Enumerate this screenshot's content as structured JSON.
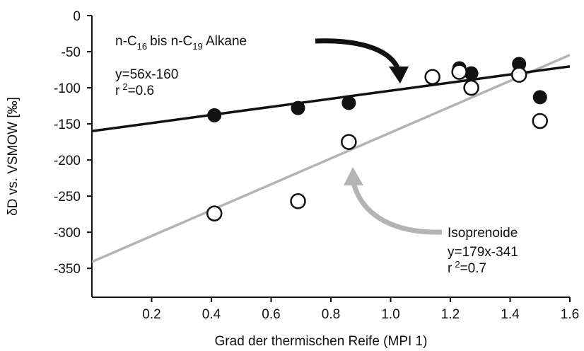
{
  "chart_data": {
    "type": "scatter",
    "xlabel": "Grad der thermischen Reife  (MPI 1)",
    "ylabel": "δD vs. VSMOW [‰]",
    "xlim": [
      0,
      1.6
    ],
    "ylim": [
      -390,
      0
    ],
    "x_ticks": [
      0.2,
      0.4,
      0.6,
      0.8,
      1.0,
      1.2,
      1.4,
      1.6
    ],
    "x_tick_labels": [
      "0.2",
      "0.4",
      "0.6",
      "0.8",
      "1.0",
      "1.2",
      "1.4",
      "1.6"
    ],
    "y_ticks": [
      0,
      -50,
      -100,
      -150,
      -200,
      -250,
      -300,
      -350
    ],
    "y_tick_labels": [
      "0",
      "-50",
      "-100",
      "-150",
      "-200",
      "-250",
      "-300",
      "-350"
    ],
    "grid": false,
    "legend": "none",
    "series": [
      {
        "label_main": "n-C",
        "label_sub1": "16",
        "label_mid": "bis n-C",
        "label_sub2": "19",
        "label_end": " Alkane",
        "marker": "filled-circle",
        "color": "#111111",
        "points": [
          {
            "x": 0.41,
            "y": -138
          },
          {
            "x": 0.69,
            "y": -128
          },
          {
            "x": 0.86,
            "y": -121
          },
          {
            "x": 1.23,
            "y": -73
          },
          {
            "x": 1.27,
            "y": -80
          },
          {
            "x": 1.43,
            "y": -67
          },
          {
            "x": 1.5,
            "y": -113
          }
        ],
        "fit": {
          "slope": 56,
          "intercept": -160,
          "equation": "y=56x-160",
          "r2_prefix": "r",
          "r2_sup": "2",
          "r2_value": "=0.6"
        }
      },
      {
        "name": "Isoprenoide",
        "marker": "open-circle",
        "color": "#aaaaaa",
        "points": [
          {
            "x": 0.41,
            "y": -274
          },
          {
            "x": 0.69,
            "y": -257
          },
          {
            "x": 0.86,
            "y": -175
          },
          {
            "x": 1.14,
            "y": -85
          },
          {
            "x": 1.23,
            "y": -78
          },
          {
            "x": 1.27,
            "y": -100
          },
          {
            "x": 1.43,
            "y": -82
          },
          {
            "x": 1.5,
            "y": -146
          }
        ],
        "fit": {
          "slope": 179,
          "intercept": -341,
          "equation": "y=179x-341",
          "r2_prefix": "r",
          "r2_sup": "2",
          "r2_value": "=0.7"
        }
      }
    ]
  }
}
